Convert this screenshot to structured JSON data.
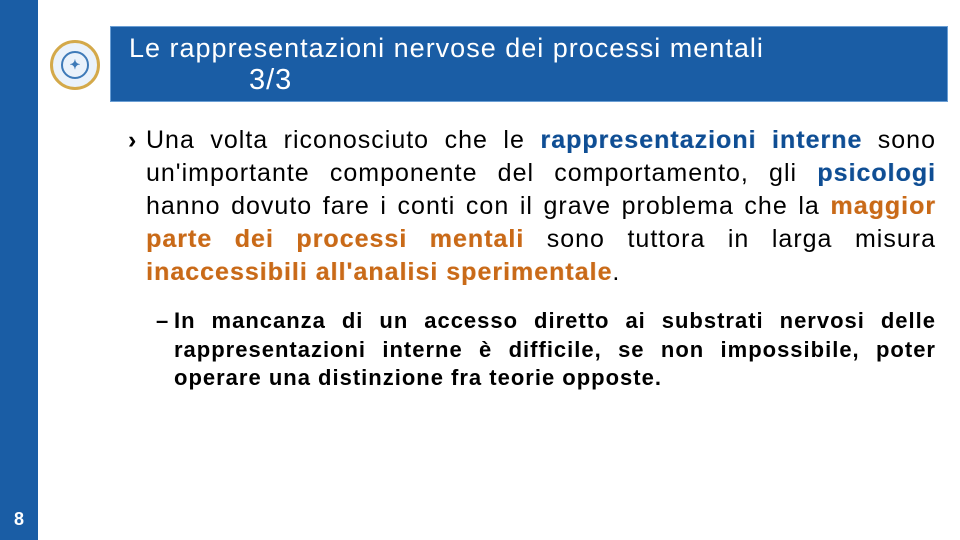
{
  "colors": {
    "primary_blue": "#1a5da5",
    "title_border": "#6a9ed4",
    "bold_blue": "#0f4e94",
    "bold_orange": "#c96a18",
    "logo_gold": "#d4a94a",
    "logo_inner": "#3e7ab8",
    "white": "#ffffff",
    "black": "#000000"
  },
  "page_number": "8",
  "title": {
    "line1": "Le rappresentazioni nervose dei processi mentali",
    "line2": "3/3"
  },
  "bullets": {
    "primary": {
      "marker": "›",
      "segments": [
        {
          "t": "Una volta riconosciuto che le ",
          "style": "plain"
        },
        {
          "t": "rappresentazioni interne",
          "style": "bold-blue"
        },
        {
          "t": " sono un'importante componente del comportamento, gli ",
          "style": "plain"
        },
        {
          "t": "psicologi",
          "style": "bold-blue"
        },
        {
          "t": " hanno dovuto fare i conti con il grave problema che la ",
          "style": "plain"
        },
        {
          "t": "maggior parte dei processi mentali",
          "style": "bold-orange"
        },
        {
          "t": " sono tuttora in larga misura ",
          "style": "plain"
        },
        {
          "t": "inaccessibili all'analisi sperimentale",
          "style": "bold-orange"
        },
        {
          "t": ".",
          "style": "plain"
        }
      ]
    },
    "secondary": {
      "marker": "–",
      "text": "In mancanza di un accesso diretto ai substrati nervosi delle rappresentazioni interne è difficile, se non impossibile, poter operare una distinzione fra teorie opposte."
    }
  },
  "logo_glyph": "✦"
}
